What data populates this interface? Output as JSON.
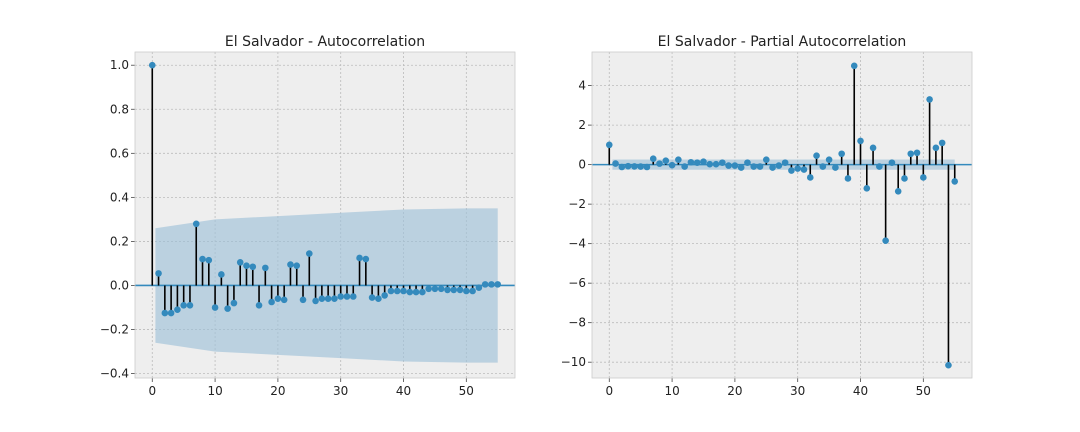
{
  "chart_data": [
    {
      "type": "stem",
      "title": "El Salvador - Autocorrelation",
      "xlabel": "",
      "ylabel": "",
      "xlim": [
        -2.75,
        57.75
      ],
      "ylim": [
        -0.42,
        1.06
      ],
      "xticks": [
        0,
        10,
        20,
        30,
        40,
        50
      ],
      "xtick_labels": [
        "0",
        "10",
        "20",
        "30",
        "40",
        "50"
      ],
      "yticks": [
        -0.4,
        -0.2,
        0.0,
        0.2,
        0.4,
        0.6,
        0.8,
        1.0
      ],
      "ytick_labels": [
        "−0.4",
        "−0.2",
        "0.0",
        "0.2",
        "0.4",
        "0.6",
        "0.8",
        "1.0"
      ],
      "grid": true,
      "colors": {
        "marker": "#348ABD",
        "stem": "#000000",
        "band": "#9fc2d8",
        "zero_line": "#348ABD",
        "background": "#EEEEEE"
      },
      "x": [
        0,
        1,
        2,
        3,
        4,
        5,
        6,
        7,
        8,
        9,
        10,
        11,
        12,
        13,
        14,
        15,
        16,
        17,
        18,
        19,
        20,
        21,
        22,
        23,
        24,
        25,
        26,
        27,
        28,
        29,
        30,
        31,
        32,
        33,
        34,
        35,
        36,
        37,
        38,
        39,
        40,
        41,
        42,
        43,
        44,
        45,
        46,
        47,
        48,
        49,
        50,
        51,
        52,
        53,
        54,
        55
      ],
      "values": [
        1.0,
        0.055,
        -0.125,
        -0.125,
        -0.11,
        -0.09,
        -0.09,
        0.28,
        0.12,
        0.115,
        -0.1,
        0.05,
        -0.105,
        -0.08,
        0.105,
        0.09,
        0.085,
        -0.09,
        0.08,
        -0.075,
        -0.06,
        -0.065,
        0.095,
        0.09,
        -0.065,
        0.145,
        -0.07,
        -0.06,
        -0.06,
        -0.06,
        -0.05,
        -0.05,
        -0.05,
        0.125,
        0.12,
        -0.055,
        -0.06,
        -0.045,
        -0.025,
        -0.025,
        -0.025,
        -0.03,
        -0.03,
        -0.03,
        -0.015,
        -0.015,
        -0.015,
        -0.02,
        -0.02,
        -0.02,
        -0.025,
        -0.025,
        -0.01,
        0.005,
        0.005,
        0.005
      ],
      "conf_band": {
        "x": [
          1,
          10,
          20,
          30,
          40,
          50,
          55
        ],
        "upper": [
          0.26,
          0.3,
          0.315,
          0.33,
          0.345,
          0.35,
          0.35
        ],
        "lower": [
          -0.26,
          -0.3,
          -0.315,
          -0.33,
          -0.345,
          -0.35,
          -0.35
        ]
      }
    },
    {
      "type": "stem",
      "title": "El Salvador - Partial Autocorrelation",
      "xlabel": "",
      "ylabel": "",
      "xlim": [
        -2.75,
        57.75
      ],
      "ylim": [
        -10.8,
        5.7
      ],
      "xticks": [
        0,
        10,
        20,
        30,
        40,
        50
      ],
      "xtick_labels": [
        "0",
        "10",
        "20",
        "30",
        "40",
        "50"
      ],
      "yticks": [
        -10,
        -8,
        -6,
        -4,
        -2,
        0,
        2,
        4
      ],
      "ytick_labels": [
        "−10",
        "−8",
        "−6",
        "−4",
        "−2",
        "0",
        "2",
        "4"
      ],
      "grid": true,
      "colors": {
        "marker": "#348ABD",
        "stem": "#000000",
        "band": "#9fc2d8",
        "zero_line": "#348ABD",
        "background": "#EEEEEE"
      },
      "x": [
        0,
        1,
        2,
        3,
        4,
        5,
        6,
        7,
        8,
        9,
        10,
        11,
        12,
        13,
        14,
        15,
        16,
        17,
        18,
        19,
        20,
        21,
        22,
        23,
        24,
        25,
        26,
        27,
        28,
        29,
        30,
        31,
        32,
        33,
        34,
        35,
        36,
        37,
        38,
        39,
        40,
        41,
        42,
        43,
        44,
        45,
        46,
        47,
        48,
        49,
        50,
        51,
        52,
        53,
        54,
        55
      ],
      "values": [
        1.0,
        0.055,
        -0.12,
        -0.08,
        -0.09,
        -0.1,
        -0.12,
        0.3,
        0.05,
        0.2,
        -0.03,
        0.25,
        -0.1,
        0.12,
        0.1,
        0.15,
        0.02,
        0.02,
        0.1,
        -0.05,
        -0.05,
        -0.15,
        0.1,
        -0.1,
        -0.1,
        0.25,
        -0.15,
        -0.05,
        0.1,
        -0.3,
        -0.2,
        -0.25,
        -0.65,
        0.45,
        -0.1,
        0.25,
        -0.15,
        0.55,
        -0.7,
        5.0,
        1.2,
        -1.2,
        0.85,
        -0.1,
        -3.85,
        0.1,
        -1.35,
        -0.7,
        0.55,
        0.6,
        -0.65,
        3.3,
        0.85,
        1.1,
        -10.15,
        -0.85
      ],
      "conf_band": {
        "x": [
          1,
          55
        ],
        "upper": [
          0.26,
          0.26
        ],
        "lower": [
          -0.26,
          -0.26
        ]
      }
    }
  ]
}
